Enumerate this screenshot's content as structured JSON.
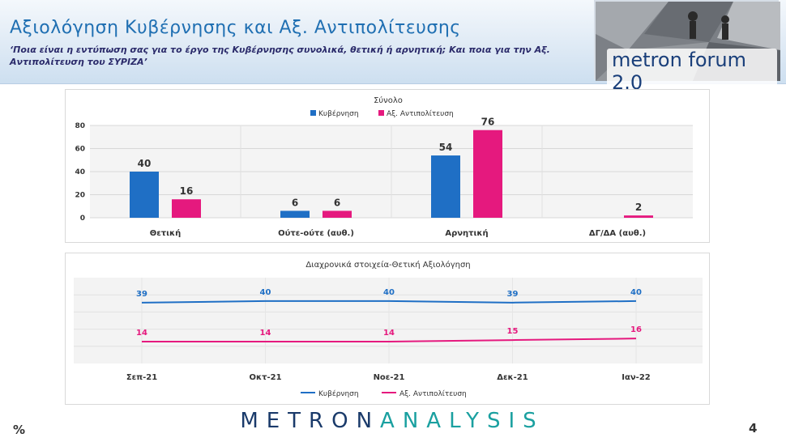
{
  "header": {
    "title": "Αξιολόγηση Κυβέρνησης και Αξ. Αντιπολίτευσης",
    "subtitle": "‘Ποια είναι η εντύπωση σας για το έργο της Κυβέρνησης συνολικά, θετική ή αρνητική; Και ποια για την Αξ. Αντιπολίτευση του ΣΥΡΙΖΑ’",
    "logo_text": "metron forum 2.0"
  },
  "footer": {
    "unit": "%",
    "brand_part1": "METRON",
    "brand_part2": "ANALYSIS",
    "page_number": "4"
  },
  "colors": {
    "government": "#1f6fc5",
    "opposition": "#e5197e"
  },
  "chart_data": [
    {
      "type": "bar",
      "title": "Σύνολο",
      "categories": [
        "Θετική",
        "Ούτε-ούτε (αυθ.)",
        "Αρνητική",
        "ΔΓ/ΔΑ (αυθ.)"
      ],
      "series": [
        {
          "name": "Κυβέρνηση",
          "values": [
            40,
            6,
            54,
            null
          ],
          "labels": [
            "40",
            "6",
            "54",
            ""
          ]
        },
        {
          "name": "Αξ. Αντιπολίτευση",
          "values": [
            16,
            6,
            76,
            2
          ],
          "labels": [
            "16",
            "6",
            "76",
            "2"
          ]
        }
      ],
      "yticks": [
        "0",
        "20",
        "40",
        "60",
        "80"
      ],
      "ylim": [
        0,
        80
      ],
      "legend": "top",
      "grid": true
    },
    {
      "type": "line",
      "title": "Διαχρονικά στοιχεία-Θετική Αξιολόγηση",
      "categories": [
        "Σεπ-21",
        "Οκτ-21",
        "Νοε-21",
        "Δεκ-21",
        "Ιαν-22"
      ],
      "series": [
        {
          "name": "Κυβέρνηση",
          "values": [
            39,
            40,
            40,
            39,
            40
          ]
        },
        {
          "name": "Αξ. Αντιπολίτευση",
          "values": [
            14,
            14,
            14,
            15,
            16
          ]
        }
      ],
      "legend": "bottom",
      "grid": true
    }
  ]
}
